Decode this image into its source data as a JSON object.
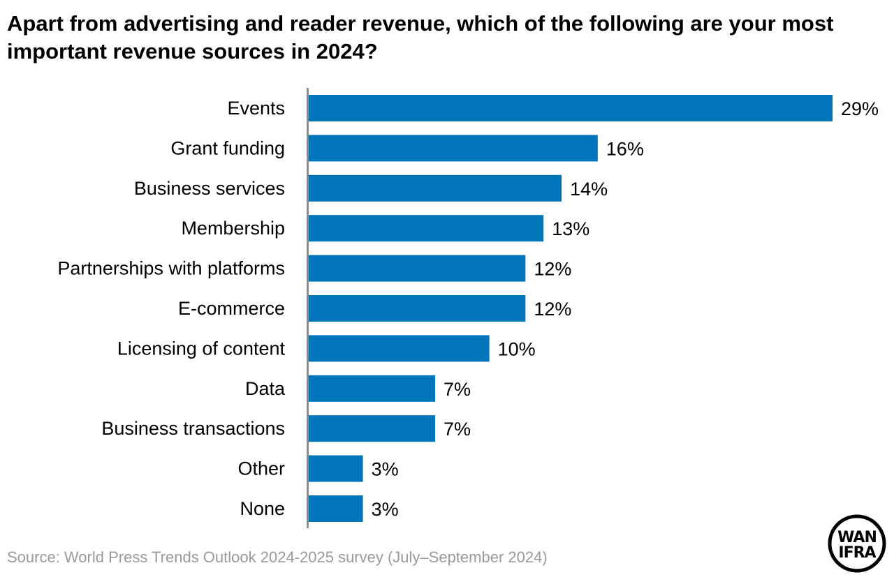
{
  "chart_data": {
    "type": "bar",
    "orientation": "horizontal",
    "title": "Apart from advertising and reader revenue, which of the following are your most important revenue sources in 2024?",
    "categories": [
      "Events",
      "Grant funding",
      "Business services",
      "Membership",
      "Partnerships with platforms",
      "E-commerce",
      "Licensing of content",
      "Data",
      "Business transactions",
      "Other",
      "None"
    ],
    "values": [
      29,
      16,
      14,
      13,
      12,
      12,
      10,
      7,
      7,
      3,
      3
    ],
    "data_labels": [
      "29%",
      "16%",
      "14%",
      "13%",
      "12%",
      "12%",
      "10%",
      "7%",
      "7%",
      "3%",
      "3%"
    ],
    "unit": "%",
    "xlim": [
      0,
      29
    ],
    "grid": false,
    "bar_color": "#0075BA",
    "axis_color": "#8c8c8c"
  },
  "source": "Source: World Press Trends Outlook 2024-2025 survey (July–September 2024)",
  "logo": {
    "text_line1": "WAN",
    "text_line2": "IFRA"
  }
}
